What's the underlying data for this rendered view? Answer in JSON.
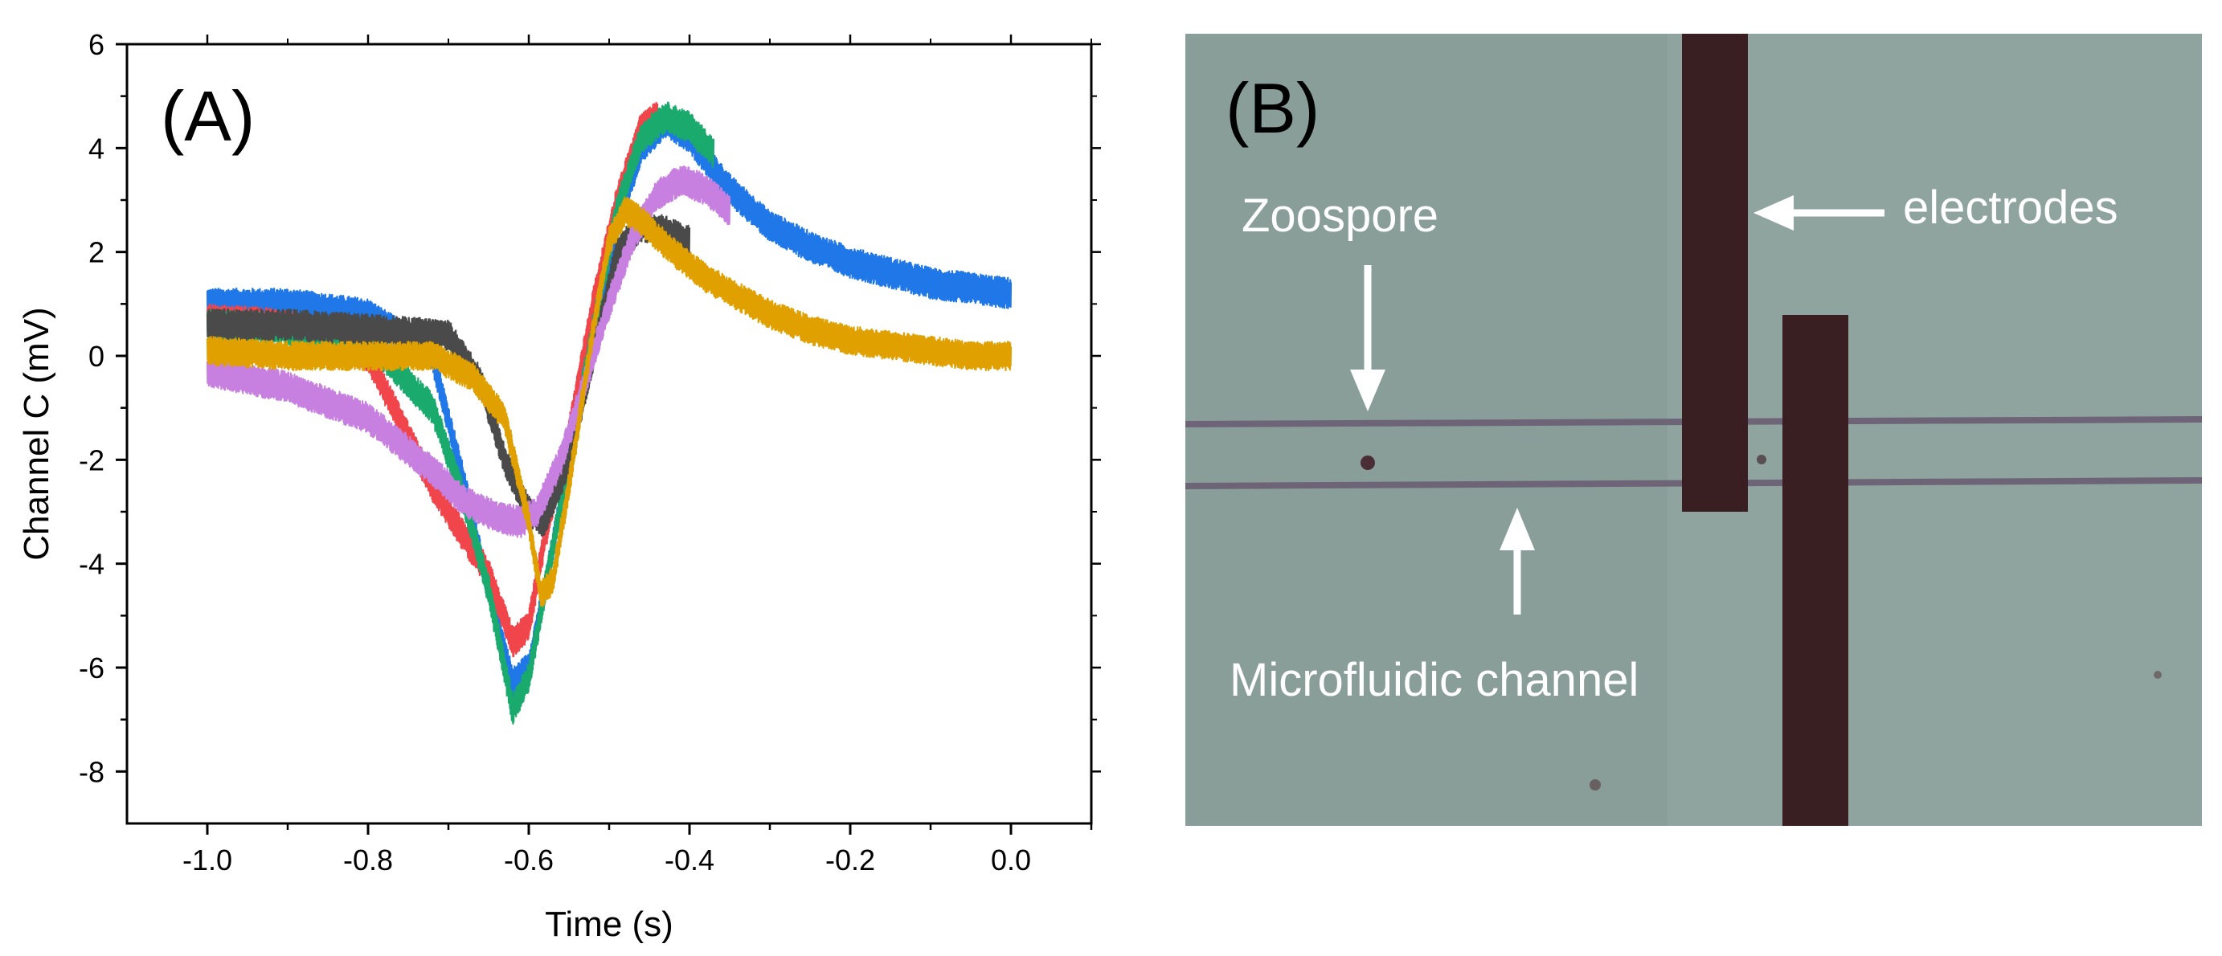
{
  "chart_data": {
    "type": "line",
    "panel_label": "(A)",
    "xlabel": "Time (s)",
    "ylabel": "Channel C (mV)",
    "xlim": [
      -1.1,
      0.1
    ],
    "ylim": [
      -9,
      6
    ],
    "xticks": [
      -1.0,
      -0.8,
      -0.6,
      -0.4,
      -0.2,
      0.0
    ],
    "xtick_labels": [
      "-1.0",
      "-0.8",
      "-0.6",
      "-0.4",
      "-0.2",
      "0.0"
    ],
    "yticks": [
      -8,
      -6,
      -4,
      -2,
      0,
      2,
      4,
      6
    ],
    "ytick_labels": [
      "-8",
      "-6",
      "-4",
      "-2",
      "0",
      "2",
      "4",
      "6"
    ],
    "series": [
      {
        "name": "trace-blue",
        "color": "#1f77e8",
        "noise": 0.3,
        "x": [
          -1.0,
          -0.9,
          -0.8,
          -0.72,
          -0.68,
          -0.65,
          -0.62,
          -0.6,
          -0.58,
          -0.55,
          -0.52,
          -0.49,
          -0.46,
          -0.43,
          -0.4,
          -0.35,
          -0.3,
          -0.25,
          -0.2,
          -0.15,
          -0.1,
          -0.05,
          0.0
        ],
        "y": [
          1.0,
          1.0,
          0.8,
          0.0,
          -2.5,
          -4.5,
          -6.3,
          -6.0,
          -4.5,
          -2.0,
          0.5,
          2.5,
          4.0,
          4.5,
          4.2,
          3.2,
          2.5,
          2.1,
          1.8,
          1.6,
          1.4,
          1.3,
          1.2
        ]
      },
      {
        "name": "trace-red",
        "color": "#f0454b",
        "noise": 0.3,
        "x": [
          -1.0,
          -0.9,
          -0.8,
          -0.72,
          -0.68,
          -0.65,
          -0.62,
          -0.6,
          -0.58,
          -0.55,
          -0.52,
          -0.49,
          -0.46,
          -0.44
        ],
        "y": [
          0.7,
          0.6,
          0.0,
          -2.5,
          -3.5,
          -4.2,
          -5.5,
          -5.2,
          -3.5,
          -1.5,
          1.0,
          3.0,
          4.4,
          4.6
        ]
      },
      {
        "name": "trace-green",
        "color": "#1aaa6e",
        "noise": 0.3,
        "x": [
          -1.0,
          -0.9,
          -0.8,
          -0.72,
          -0.68,
          -0.65,
          -0.62,
          -0.6,
          -0.58,
          -0.55,
          -0.52,
          -0.49,
          -0.46,
          -0.43,
          -0.4,
          -0.37
        ],
        "y": [
          0.6,
          0.5,
          0.3,
          -1.0,
          -2.8,
          -4.5,
          -6.8,
          -6.2,
          -4.5,
          -2.0,
          0.5,
          2.8,
          4.2,
          4.6,
          4.4,
          3.9
        ]
      },
      {
        "name": "trace-black",
        "color": "#4a4a4a",
        "noise": 0.3,
        "x": [
          -1.0,
          -0.9,
          -0.8,
          -0.7,
          -0.66,
          -0.63,
          -0.6,
          -0.58,
          -0.55,
          -0.52,
          -0.49,
          -0.46,
          -0.43,
          -0.4
        ],
        "y": [
          0.6,
          0.6,
          0.5,
          0.4,
          -0.5,
          -2.0,
          -3.0,
          -3.2,
          -2.0,
          0.0,
          2.0,
          2.5,
          2.4,
          2.2
        ]
      },
      {
        "name": "trace-violet",
        "color": "#c77fe0",
        "noise": 0.3,
        "x": [
          -1.0,
          -0.9,
          -0.8,
          -0.72,
          -0.68,
          -0.64,
          -0.61,
          -0.59,
          -0.56,
          -0.53,
          -0.5,
          -0.47,
          -0.44,
          -0.41,
          -0.38,
          -0.35
        ],
        "y": [
          -0.3,
          -0.6,
          -1.2,
          -2.2,
          -2.8,
          -3.1,
          -3.2,
          -3.0,
          -2.0,
          -0.5,
          1.0,
          2.3,
          3.1,
          3.4,
          3.2,
          2.8
        ]
      },
      {
        "name": "trace-orange",
        "color": "#e0a000",
        "noise": 0.28,
        "x": [
          -1.0,
          -0.9,
          -0.8,
          -0.72,
          -0.67,
          -0.63,
          -0.6,
          -0.585,
          -0.57,
          -0.55,
          -0.52,
          -0.5,
          -0.48,
          -0.46,
          -0.42,
          -0.38,
          -0.3,
          -0.25,
          -0.2,
          -0.15,
          -0.1,
          -0.05,
          0.0
        ],
        "y": [
          0.1,
          0.0,
          0.0,
          0.0,
          -0.4,
          -1.2,
          -3.2,
          -4.6,
          -4.3,
          -2.5,
          0.5,
          2.2,
          2.8,
          2.6,
          2.0,
          1.5,
          0.8,
          0.5,
          0.3,
          0.2,
          0.1,
          0.0,
          0.0
        ]
      }
    ]
  },
  "micrograph": {
    "panel_label": "(B)",
    "label_zoospore": "Zoospore",
    "label_electrodes": "electrodes",
    "label_channel": "Microfluidic channel",
    "colors": {
      "background": "#8fa49e",
      "electrode": "#3a1f22",
      "channel_line": "#6e6478",
      "label": "#ffffff"
    }
  }
}
